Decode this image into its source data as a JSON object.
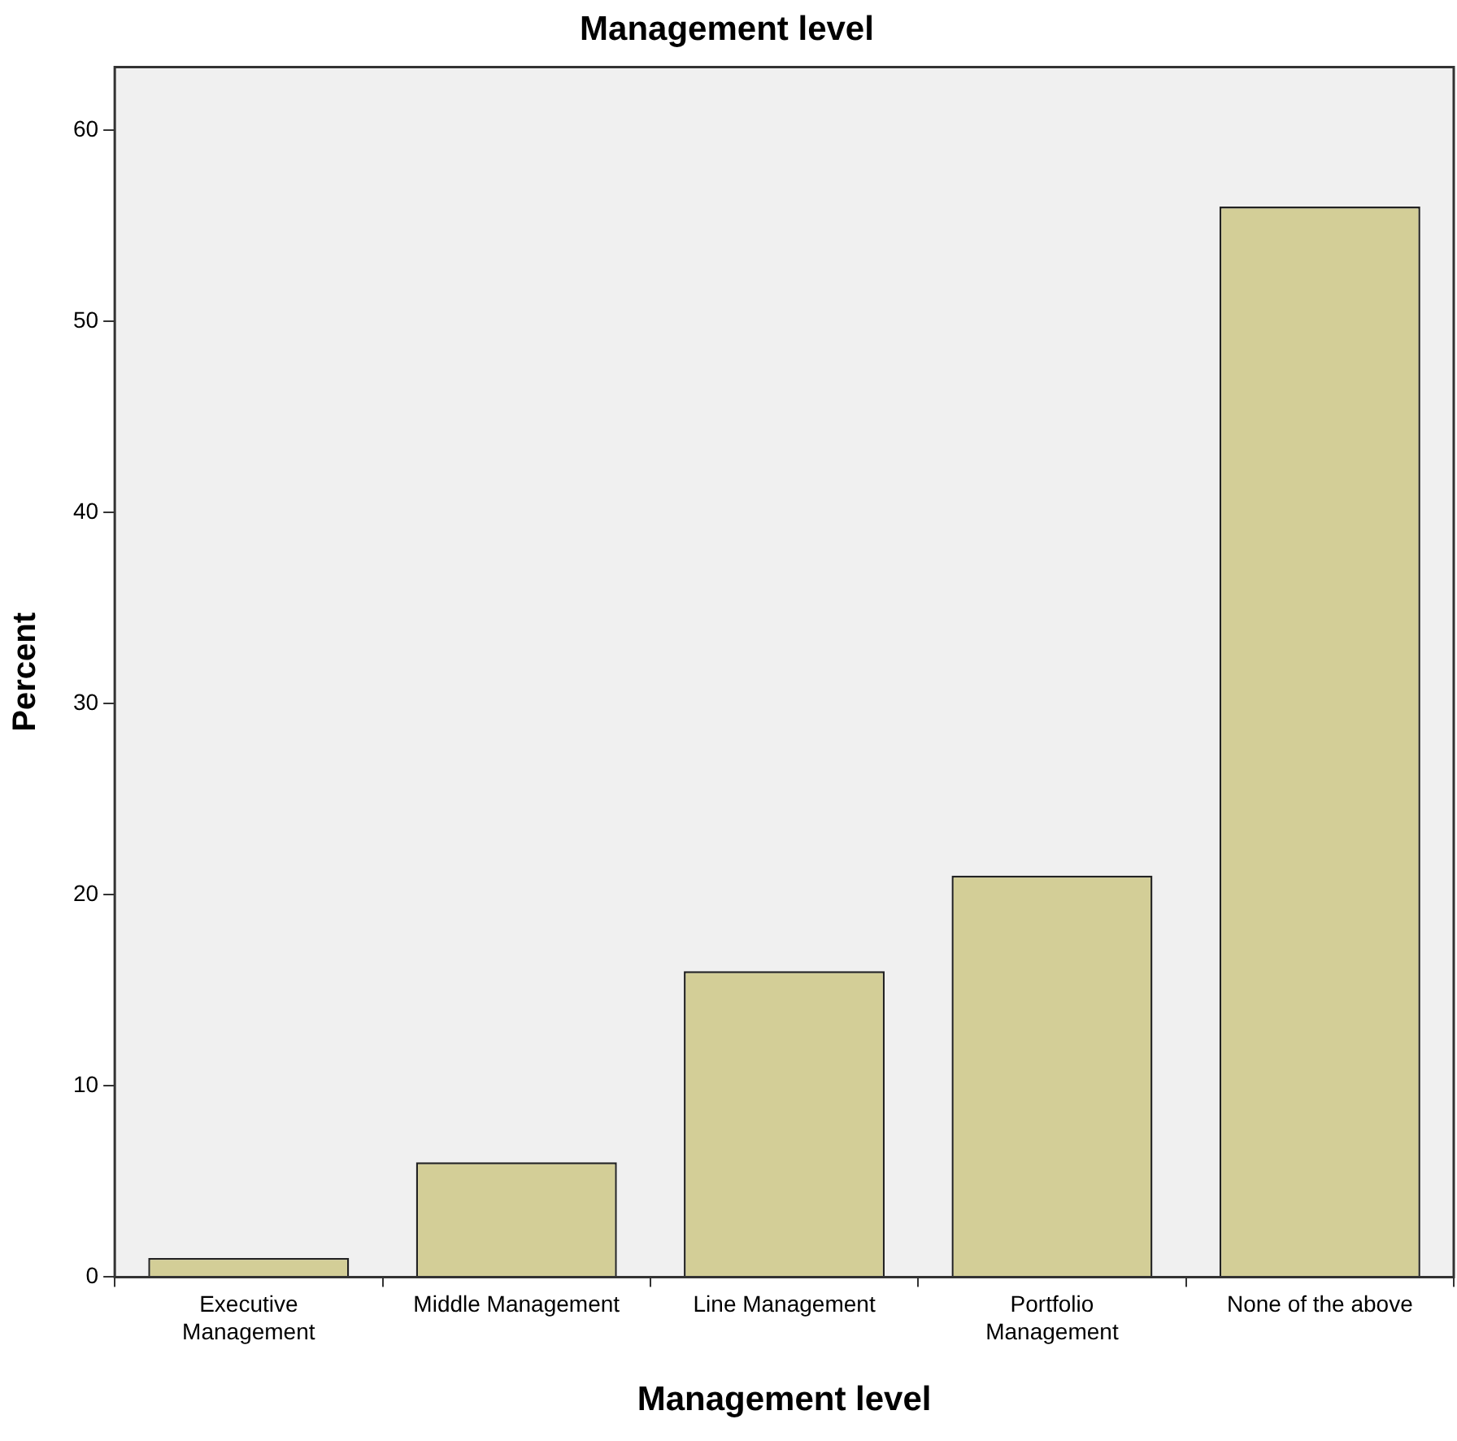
{
  "chart_data": {
    "type": "bar",
    "title": "Management level",
    "xlabel": "Management level",
    "ylabel": "Percent",
    "categories": [
      "Executive Management",
      "Middle Management",
      "Line Management",
      "Portfolio Management",
      "None of the above"
    ],
    "values": [
      1,
      6,
      16,
      21,
      56
    ],
    "color": "#d3ce97",
    "ylim": [
      0,
      63.3
    ],
    "yticks": [
      0,
      10,
      20,
      30,
      40,
      50,
      60
    ],
    "grid": false,
    "legend": false
  }
}
